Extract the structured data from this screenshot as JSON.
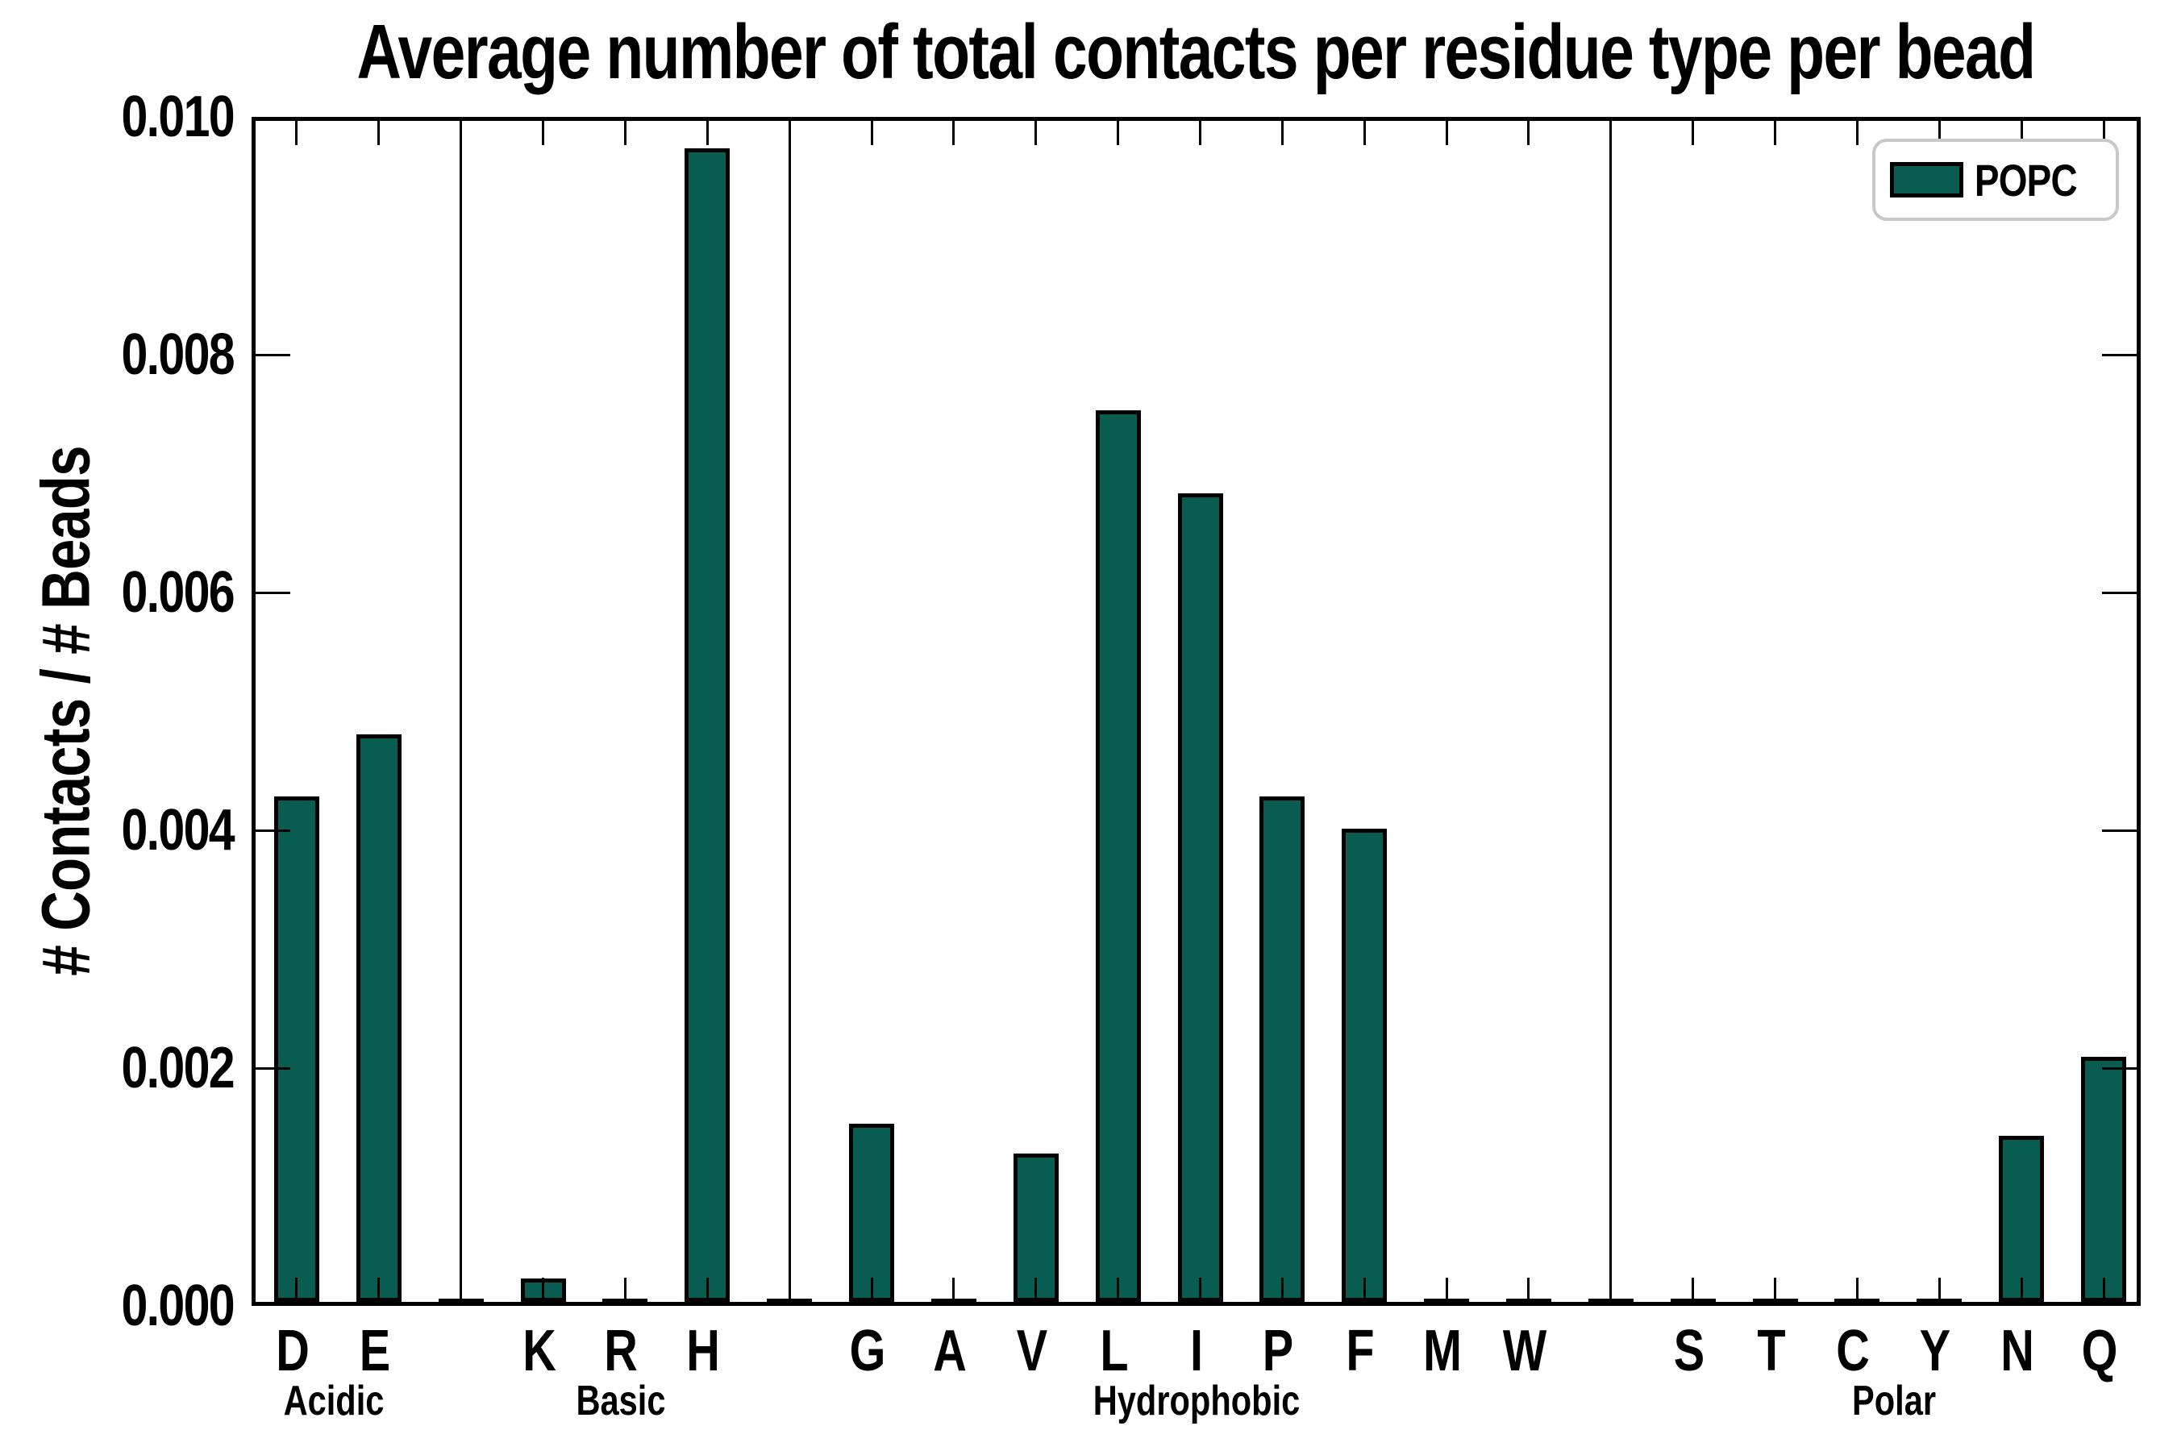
{
  "chart_data": {
    "type": "bar",
    "title": "Average number of total contacts per residue type per bead",
    "xlabel": "",
    "ylabel": "# Contacts / # Beads",
    "legend_label": "POPC",
    "legend_position": "upper right",
    "grid": false,
    "categories": [
      "D",
      "E",
      "",
      "K",
      "R",
      "H",
      "",
      "G",
      "A",
      "V",
      "L",
      "I",
      "P",
      "F",
      "M",
      "W",
      "",
      "S",
      "T",
      "C",
      "Y",
      "N",
      "Q"
    ],
    "values": [
      0.00425,
      0.00477,
      0,
      0.0002,
      3e-05,
      0.0097,
      0,
      0.0015,
      2e-05,
      0.00125,
      0.0075,
      0.0068,
      0.00425,
      0.00398,
      2e-05,
      2e-05,
      0,
      2e-05,
      2e-05,
      2e-05,
      2e-05,
      0.0014,
      0.00206
    ],
    "series": [
      {
        "name": "POPC",
        "values": [
          0.00425,
          0.00477,
          0,
          0.0002,
          3e-05,
          0.0097,
          0,
          0.0015,
          2e-05,
          0.00125,
          0.0075,
          0.0068,
          0.00425,
          0.00398,
          2e-05,
          2e-05,
          0,
          2e-05,
          2e-05,
          2e-05,
          2e-05,
          0.0014,
          0.00206
        ]
      }
    ],
    "groups": [
      {
        "label": "Acidic",
        "start": 0,
        "end": 1
      },
      {
        "label": "Basic",
        "start": 3,
        "end": 5
      },
      {
        "label": "Hydrophobic",
        "start": 7,
        "end": 15
      },
      {
        "label": "Polar",
        "start": 17,
        "end": 22
      }
    ],
    "separator_indices": [
      2,
      6,
      16
    ],
    "ytick_labels": [
      "0.000",
      "0.002",
      "0.004",
      "0.006",
      "0.008",
      "0.010"
    ],
    "ytick_values": [
      0,
      0.002,
      0.004,
      0.006,
      0.008,
      0.01
    ],
    "ylim": [
      0,
      0.01
    ],
    "colors": {
      "bar_fill": "#095C50",
      "bar_edge": "#000000",
      "legend_border": "#C8C8C8",
      "text": "#000000",
      "background": "#FFFFFF"
    }
  }
}
